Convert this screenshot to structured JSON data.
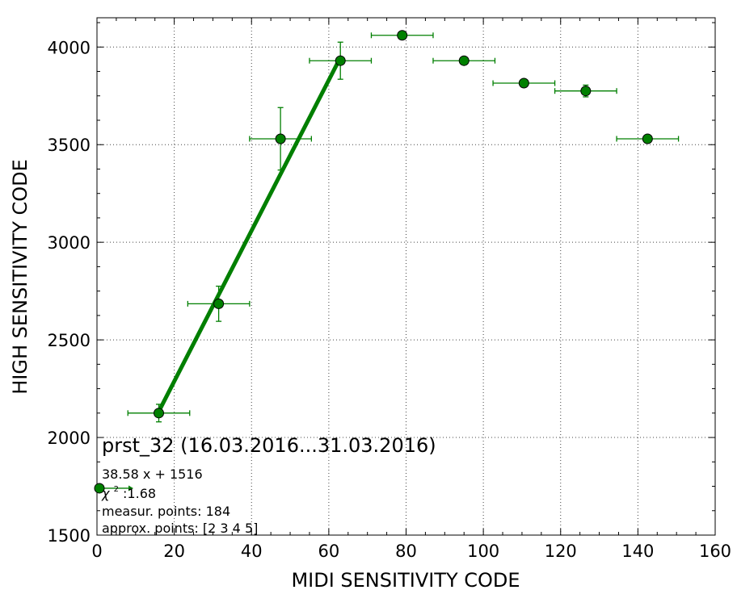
{
  "chart_data": {
    "type": "scatter",
    "xlabel": "MIDI SENSITIVITY CODE",
    "ylabel": "HIGH SENSITIVITY CODE",
    "xlim": [
      0,
      160
    ],
    "ylim": [
      1500,
      4150
    ],
    "xticks": [
      0,
      20,
      40,
      60,
      80,
      100,
      120,
      140,
      160
    ],
    "yticks": [
      1500,
      2000,
      2500,
      3000,
      3500,
      4000
    ],
    "grid": true,
    "colors": {
      "marker": "#008000",
      "line": "#007f00",
      "errorbar": "#007f00"
    },
    "points": [
      {
        "x": 16,
        "y": 2125,
        "xerr": 8,
        "yerr": 45
      },
      {
        "x": 31.5,
        "y": 2685,
        "xerr": 8,
        "yerr": 90
      },
      {
        "x": 47.5,
        "y": 3530,
        "xerr": 8,
        "yerr": 160
      },
      {
        "x": 63,
        "y": 3930,
        "xerr": 8,
        "yerr": 95
      },
      {
        "x": 79,
        "y": 4060,
        "xerr": 8,
        "yerr": 10
      },
      {
        "x": 95,
        "y": 3930,
        "xerr": 8,
        "yerr": 10
      },
      {
        "x": 110.5,
        "y": 3815,
        "xerr": 8,
        "yerr": 10
      },
      {
        "x": 126.5,
        "y": 3775,
        "xerr": 8,
        "yerr": 30
      },
      {
        "x": 142.5,
        "y": 3530,
        "xerr": 8,
        "yerr": 10
      }
    ],
    "fit": {
      "slope": 38.58,
      "intercept": 1516,
      "x_range": [
        16,
        63
      ]
    },
    "legend_marker": {
      "x": 0,
      "y": 1740
    },
    "annotations": {
      "title": "prst_32 (16.03.2016...31.03.2016)",
      "equation": "38.58 x + 1516",
      "chi_symbol": "χ",
      "chi_exp": "2",
      "chi_value": " :1.68",
      "measur": "measur. points: 184",
      "approx": "approx. points: [2 3 4 5]"
    }
  }
}
